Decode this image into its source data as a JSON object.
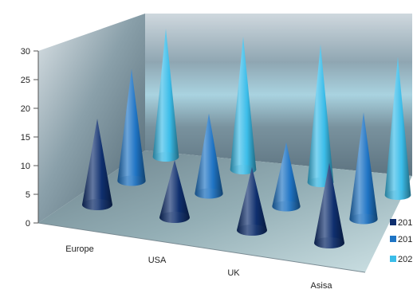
{
  "chart_data": {
    "type": "bar",
    "variant": "3d-cone",
    "title": "",
    "xlabel": "",
    "ylabel": "",
    "ylim": [
      0,
      30
    ],
    "yticks": [
      0,
      5,
      10,
      15,
      20,
      25,
      30
    ],
    "grid": false,
    "legend_position": "right",
    "categories": [
      "Europe",
      "USA",
      "UK",
      "Asisa"
    ],
    "series": [
      {
        "name": "201",
        "color": "#0f2f6e",
        "values": [
          15,
          10,
          11,
          14
        ]
      },
      {
        "name": "201",
        "color": "#1f74c4",
        "values": [
          21,
          15,
          12,
          20
        ]
      },
      {
        "name": "202",
        "color": "#3bbde9",
        "values": [
          26,
          27,
          28,
          28
        ]
      }
    ]
  }
}
